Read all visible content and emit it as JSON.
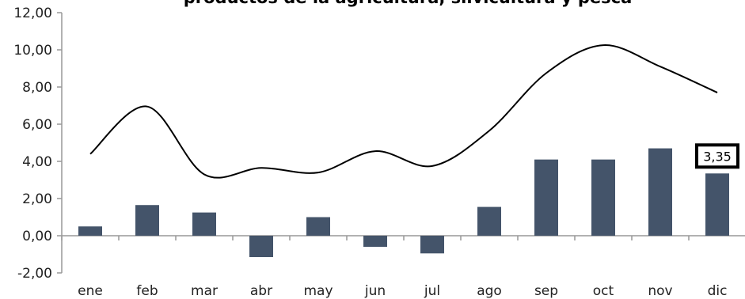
{
  "chart_data": {
    "type": "bar",
    "title": "productos de la agricultura, silvicultura y pesca",
    "categories": [
      "ene",
      "feb",
      "mar",
      "abr",
      "may",
      "jun",
      "jul",
      "ago",
      "sep",
      "oct",
      "nov",
      "dic"
    ],
    "series": [
      {
        "type": "bar",
        "values": [
          0.5,
          1.65,
          1.25,
          -1.15,
          1.0,
          -0.6,
          -0.95,
          1.55,
          4.1,
          4.1,
          4.7,
          3.35
        ],
        "color": "#44546a"
      },
      {
        "type": "line",
        "values": [
          4.4,
          6.95,
          3.3,
          3.65,
          3.4,
          4.55,
          3.75,
          5.65,
          8.75,
          10.25,
          9.1,
          7.7
        ],
        "color": "#000000"
      }
    ],
    "yticks": [
      "12,00",
      "10,00",
      "8,00",
      "6,00",
      "4,00",
      "2,00",
      "0,00",
      "-2,00"
    ],
    "ylim": [
      -2,
      12
    ],
    "annotation": {
      "category": "dic",
      "label": "3,35"
    },
    "grid": false
  }
}
